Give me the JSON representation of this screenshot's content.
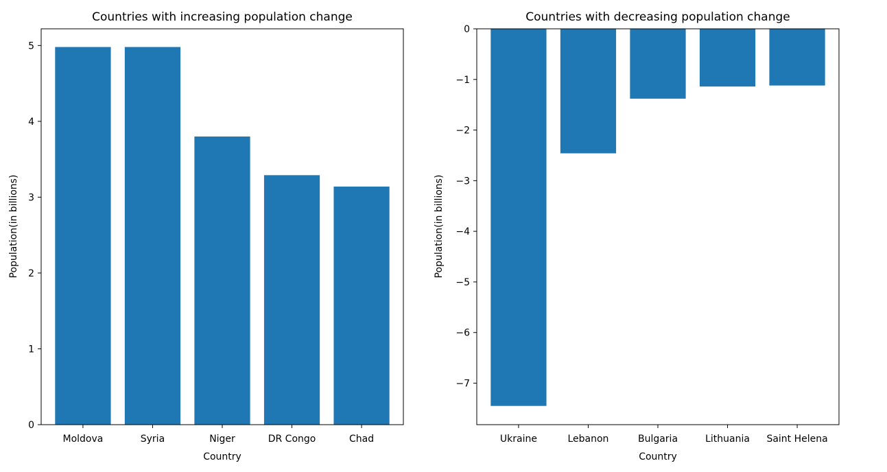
{
  "figure": {
    "bar_color": "#1f77b4",
    "background": "#ffffff"
  },
  "chart_data": [
    {
      "type": "bar",
      "title": "Countries with increasing population change",
      "xlabel": "Country",
      "ylabel": "Population(in billions)",
      "categories": [
        "Moldova",
        "Syria",
        "Niger",
        "DR Congo",
        "Chad"
      ],
      "values": [
        4.98,
        4.98,
        3.8,
        3.29,
        3.14
      ],
      "ylim": [
        0,
        5.22
      ],
      "yticks": [
        0,
        1,
        2,
        3,
        4,
        5
      ],
      "grid": false
    },
    {
      "type": "bar",
      "title": "Countries with decreasing population change",
      "xlabel": "Country",
      "ylabel": "Population(in billions)",
      "categories": [
        "Ukraine",
        "Lebanon",
        "Bulgaria",
        "Lithuania",
        "Saint Helena"
      ],
      "values": [
        -7.45,
        -2.46,
        -1.38,
        -1.14,
        -1.12
      ],
      "ylim": [
        -7.82,
        0
      ],
      "yticks": [
        0,
        -1,
        -2,
        -3,
        -4,
        -5,
        -6,
        -7
      ],
      "grid": false
    }
  ]
}
